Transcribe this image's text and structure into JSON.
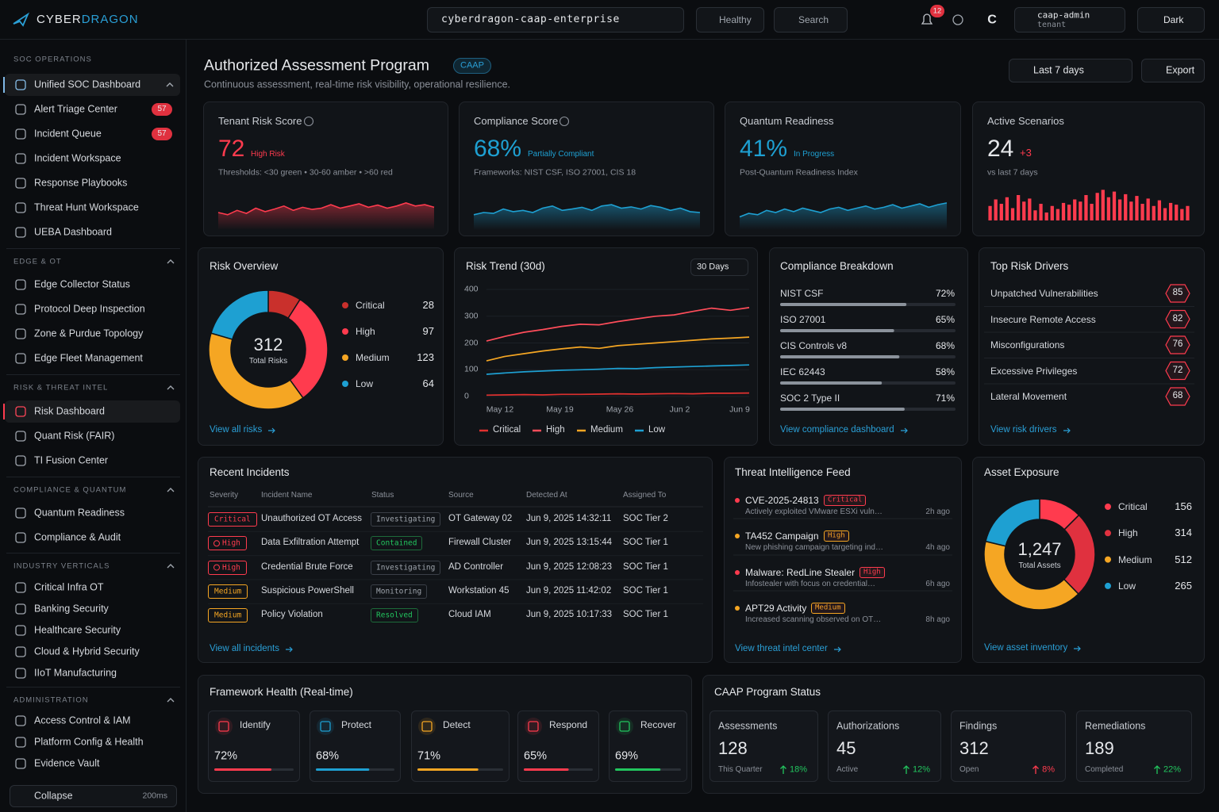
{
  "topbar": {
    "brand_a": "CYBER",
    "brand_b": "DRAGON",
    "tenant": "cyberdragon-caap-enterprise",
    "health": "Healthy",
    "health_color": "#22c55e",
    "search": "Search",
    "notifications": "12",
    "avatar": "C",
    "user": "caap-admin",
    "role": "tenant",
    "theme": "Dark"
  },
  "sidebar": {
    "sections": [
      {
        "title": "SOC OPERATIONS",
        "items": [
          {
            "label": "Unified SOC Dashboard",
            "active": true,
            "color": "#7fb8e6"
          },
          {
            "label": "Alert Triage Center",
            "badge": "57"
          },
          {
            "label": "Incident Queue",
            "badge": "57"
          },
          {
            "label": "Incident Workspace"
          },
          {
            "label": "Response Playbooks"
          },
          {
            "label": "Threat Hunt Workspace"
          },
          {
            "label": "UEBA Dashboard"
          }
        ]
      },
      {
        "title": "EDGE & OT",
        "items": [
          {
            "label": "Edge Collector Status"
          },
          {
            "label": "Protocol Deep Inspection"
          },
          {
            "label": "Zone & Purdue Topology"
          },
          {
            "label": "Edge Fleet Management"
          }
        ]
      },
      {
        "title": "RISK & THREAT INTEL",
        "items": [
          {
            "label": "Risk Dashboard",
            "active": true,
            "color": "#ff3b4e"
          },
          {
            "label": "Quant Risk (FAIR)"
          },
          {
            "label": "TI Fusion Center"
          }
        ]
      },
      {
        "title": "COMPLIANCE & QUANTUM",
        "items": [
          {
            "label": "Quantum Readiness"
          },
          {
            "label": "Compliance & Audit"
          }
        ]
      },
      {
        "title": "INDUSTRY VERTICALS",
        "items": [
          {
            "label": "Critical Infra OT"
          },
          {
            "label": "Banking Security"
          },
          {
            "label": "Healthcare Security"
          },
          {
            "label": "Cloud & Hybrid Security"
          },
          {
            "label": "IIoT Manufacturing"
          }
        ]
      },
      {
        "title": "ADMINISTRATION",
        "items": [
          {
            "label": "Access Control & IAM"
          },
          {
            "label": "Platform Config & Health"
          },
          {
            "label": "Evidence Vault"
          }
        ]
      }
    ],
    "collapse": "Collapse",
    "collapse_hint": "200ms"
  },
  "header": {
    "title": "Authorized Assessment Program",
    "tag": "CAAP",
    "subtitle": "Continuous assessment, real-time risk visibility, operational resilience.",
    "range": "Last 7 days",
    "export": "Export"
  },
  "kpis": [
    {
      "title": "Tenant Risk Score",
      "info": true,
      "value": "72",
      "color": "#ff3b4e",
      "status": "High Risk",
      "status_color": "#ff3b4e",
      "note": "Thresholds: <30 green • 30-60 amber • >60 red",
      "spark": {
        "type": "area",
        "color": "#ff3b4e",
        "ylim": [
          0,
          100
        ],
        "values": [
          40,
          35,
          45,
          38,
          50,
          42,
          48,
          55,
          45,
          52,
          47,
          50,
          58,
          50,
          55,
          60,
          52,
          57,
          50,
          55,
          62,
          55,
          58,
          52
        ]
      }
    },
    {
      "title": "Compliance Score",
      "info": true,
      "value": "68%",
      "color": "#1ea0d2",
      "status": "Partially Compliant",
      "status_color": "#1ea0d2",
      "note": "Frameworks: NIST CSF, ISO 27001, CIS 18",
      "spark": {
        "type": "area",
        "color": "#1ea0d2",
        "ylim": [
          0,
          100
        ],
        "values": [
          35,
          40,
          38,
          48,
          42,
          45,
          40,
          50,
          55,
          45,
          48,
          52,
          45,
          55,
          58,
          50,
          53,
          48,
          56,
          52,
          45,
          50,
          42,
          40
        ]
      }
    },
    {
      "title": "Quantum Readiness",
      "info": false,
      "value": "41%",
      "color": "#1ea0d2",
      "status": "In Progress",
      "status_color": "#1ea0d2",
      "note": "Post-Quantum Readiness Index",
      "spark": {
        "type": "area",
        "color": "#1ea0d2",
        "ylim": [
          0,
          100
        ],
        "values": [
          30,
          38,
          35,
          45,
          40,
          48,
          42,
          50,
          45,
          40,
          48,
          52,
          45,
          50,
          55,
          48,
          52,
          58,
          50,
          55,
          60,
          52,
          58,
          62
        ]
      }
    },
    {
      "title": "Active Scenarios",
      "info": false,
      "value": "24",
      "color": "#e6e8eb",
      "status": "+3",
      "status_color": "#ff3b4e",
      "note": "vs last 7 days",
      "spark": {
        "type": "bars",
        "color": "#ff3b4e",
        "ylim": [
          0,
          100
        ],
        "values": [
          55,
          70,
          60,
          75,
          50,
          80,
          65,
          72,
          45,
          60,
          40,
          55,
          48,
          62,
          58,
          70,
          65,
          80,
          60,
          85,
          92,
          75,
          88,
          70,
          82,
          65,
          78,
          60,
          72,
          55,
          68,
          50,
          62,
          58,
          48,
          55
        ]
      }
    }
  ],
  "risk_overview": {
    "title": "Risk Overview",
    "link": "View all risks",
    "chart_data": {
      "type": "donut",
      "categories": [
        "Critical",
        "High",
        "Medium",
        "Low"
      ],
      "values": [
        28,
        97,
        123,
        64
      ],
      "colors": [
        "#c9302c",
        "#ff3b4e",
        "#f5a623",
        "#1ea0d2"
      ],
      "total": "312",
      "total_label": "Total Risks"
    }
  },
  "risk_trend": {
    "title": "Risk Trend (30d)",
    "range": "30 Days",
    "chart_data": {
      "type": "line",
      "x_labels": [
        "May 12",
        "May 19",
        "May 26",
        "Jun 2",
        "Jun 9"
      ],
      "ylim": [
        0,
        400
      ],
      "yticks": [
        0,
        100,
        200,
        300,
        400
      ],
      "grid": true,
      "series": [
        {
          "name": "Critical",
          "color": "#e0312f",
          "values": [
            5,
            6,
            7,
            6,
            8,
            8,
            9,
            10,
            9,
            10,
            11,
            10,
            12,
            12,
            13
          ]
        },
        {
          "name": "High",
          "color": "#ff4d5a",
          "values": [
            207,
            225,
            240,
            250,
            262,
            270,
            268,
            280,
            290,
            300,
            305,
            318,
            330,
            322,
            332
          ]
        },
        {
          "name": "Medium",
          "color": "#f5a623",
          "values": [
            133,
            150,
            160,
            170,
            178,
            185,
            180,
            190,
            195,
            200,
            205,
            210,
            215,
            218,
            222
          ]
        },
        {
          "name": "Low",
          "color": "#1ea0d2",
          "values": [
            83,
            88,
            92,
            95,
            98,
            100,
            102,
            105,
            104,
            108,
            110,
            112,
            114,
            116,
            118
          ]
        }
      ]
    }
  },
  "compliance": {
    "title": "Compliance Breakdown",
    "link": "View compliance dashboard",
    "xlim": [
      0,
      100
    ],
    "items": [
      {
        "name": "NIST CSF",
        "value": 72,
        "label": "72%"
      },
      {
        "name": "ISO 27001",
        "value": 65,
        "label": "65%"
      },
      {
        "name": "CIS Controls v8",
        "value": 68,
        "label": "68%"
      },
      {
        "name": "IEC 62443",
        "value": 58,
        "label": "58%"
      },
      {
        "name": "SOC 2 Type II",
        "value": 71,
        "label": "71%"
      }
    ]
  },
  "risk_drivers": {
    "title": "Top Risk Drivers",
    "link": "View risk drivers",
    "items": [
      {
        "name": "Unpatched Vulnerabilities",
        "score": "85"
      },
      {
        "name": "Insecure Remote Access",
        "score": "82"
      },
      {
        "name": "Misconfigurations",
        "score": "76"
      },
      {
        "name": "Excessive Privileges",
        "score": "72"
      },
      {
        "name": "Lateral Movement",
        "score": "68"
      }
    ]
  },
  "incidents": {
    "title": "Recent Incidents",
    "link": "View all incidents",
    "headers": [
      "Severity",
      "Incident Name",
      "Status",
      "Source",
      "Detected At",
      "Assigned To"
    ],
    "rows": [
      {
        "severity": {
          "text": "Critical",
          "color": "#ff3b4e",
          "icon": false
        },
        "name": "Unauthorized OT Access",
        "status": {
          "text": "Investigating",
          "color": "#a0a6ae"
        },
        "source": "OT Gateway 02",
        "detected": "Jun 9, 2025 14:32:11",
        "assigned": "SOC Tier 2"
      },
      {
        "severity": {
          "text": "High",
          "color": "#ff3b4e",
          "icon": true
        },
        "name": "Data Exfiltration Attempt",
        "status": {
          "text": "Contained",
          "color": "#22c55e"
        },
        "source": "Firewall Cluster",
        "detected": "Jun 9, 2025 13:15:44",
        "assigned": "SOC Tier 1"
      },
      {
        "severity": {
          "text": "High",
          "color": "#ff3b4e",
          "icon": true
        },
        "name": "Credential Brute Force",
        "status": {
          "text": "Investigating",
          "color": "#a0a6ae"
        },
        "source": "AD Controller",
        "detected": "Jun 9, 2025 12:08:23",
        "assigned": "SOC Tier 1"
      },
      {
        "severity": {
          "text": "Medium",
          "color": "#f5a623",
          "icon": false
        },
        "name": "Suspicious PowerShell",
        "status": {
          "text": "Monitoring",
          "color": "#a0a6ae"
        },
        "source": "Workstation 45",
        "detected": "Jun 9, 2025 11:42:02",
        "assigned": "SOC Tier 1"
      },
      {
        "severity": {
          "text": "Medium",
          "color": "#f5a623",
          "icon": false
        },
        "name": "Policy Violation",
        "status": {
          "text": "Resolved",
          "color": "#22c55e"
        },
        "source": "Cloud IAM",
        "detected": "Jun 9, 2025 10:17:33",
        "assigned": "SOC Tier 1"
      }
    ]
  },
  "threat_feed": {
    "title": "Threat Intelligence Feed",
    "link": "View threat intel center",
    "items": [
      {
        "title": "CVE-2025-24813",
        "severity": "Critical",
        "color": "#ff3b4e",
        "desc": "Actively exploited VMware ESXi vuln…",
        "time": "2h ago"
      },
      {
        "title": "TA452 Campaign",
        "severity": "High",
        "color": "#f5a623",
        "desc": "New phishing campaign targeting ind…",
        "time": "4h ago"
      },
      {
        "title": "Malware: RedLine Stealer",
        "severity": "High",
        "color": "#ff3b4e",
        "desc": "Infostealer with focus on credential…",
        "time": "6h ago"
      },
      {
        "title": "APT29 Activity",
        "severity": "Medium",
        "color": "#f5a623",
        "desc": "Increased scanning observed on OT…",
        "time": "8h ago"
      }
    ]
  },
  "asset_exposure": {
    "title": "Asset Exposure",
    "link": "View asset inventory",
    "chart_data": {
      "type": "donut",
      "categories": [
        "Critical",
        "High",
        "Medium",
        "Low"
      ],
      "values": [
        156,
        314,
        512,
        265
      ],
      "colors": [
        "#ff3b4e",
        "#e0313f",
        "#f5a623",
        "#1ea0d2"
      ],
      "total": "1,247",
      "total_label": "Total Assets"
    }
  },
  "framework_health": {
    "title": "Framework Health (Real-time)",
    "xlim": [
      0,
      100
    ],
    "items": [
      {
        "name": "Identify",
        "value": 72,
        "label": "72%",
        "color": "#ff3b4e"
      },
      {
        "name": "Protect",
        "value": 68,
        "label": "68%",
        "color": "#1ea0d2"
      },
      {
        "name": "Detect",
        "value": 71,
        "label": "71%",
        "color": "#f5a623"
      },
      {
        "name": "Respond",
        "value": 65,
        "label": "65%",
        "color": "#ff3b4e"
      },
      {
        "name": "Recover",
        "value": 69,
        "label": "69%",
        "color": "#22c55e"
      }
    ]
  },
  "program_status": {
    "title": "CAAP Program Status",
    "items": [
      {
        "title": "Assessments",
        "value": "128",
        "sub": "This Quarter",
        "change": "18%",
        "color": "#22c55e"
      },
      {
        "title": "Authorizations",
        "value": "45",
        "sub": "Active",
        "change": "12%",
        "color": "#22c55e"
      },
      {
        "title": "Findings",
        "value": "312",
        "sub": "Open",
        "change": "8%",
        "color": "#ff3b4e"
      },
      {
        "title": "Remediations",
        "value": "189",
        "sub": "Completed",
        "change": "22%",
        "color": "#22c55e"
      }
    ]
  }
}
